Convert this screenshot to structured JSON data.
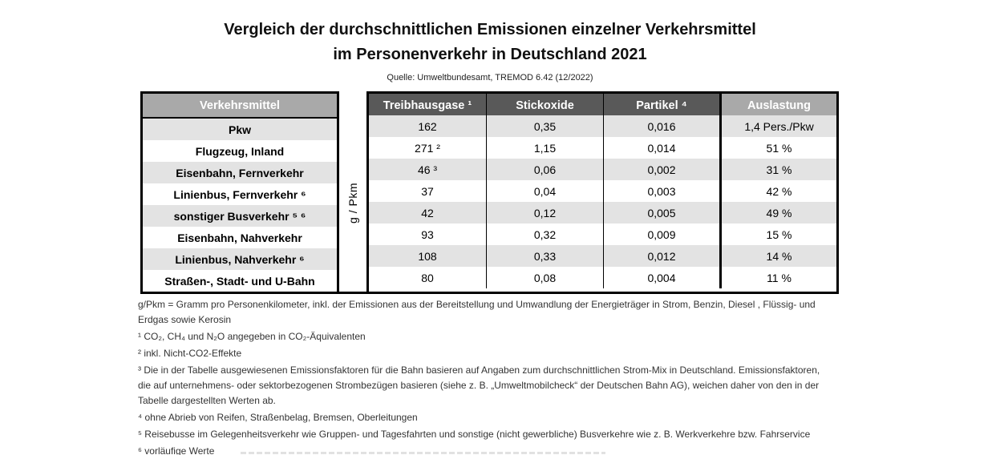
{
  "header": {
    "title_line1": "Vergleich der durchschnittlichen Emissionen einzelner Verkehrsmittel",
    "title_line2": "im Personenverkehr in Deutschland 2021",
    "source": "Quelle: Umweltbundesamt, TREMOD 6.42 (12/2022)"
  },
  "table": {
    "unit_label": "g / Pkm",
    "columns": {
      "col0": "Verkehrsmittel",
      "col1": "Treibhausgase ¹",
      "col2": "Stickoxide",
      "col3": "Partikel ⁴",
      "col4": "Auslastung"
    },
    "rows": [
      {
        "label": "Pkw",
        "ghg": "162",
        "nox": "0,35",
        "pm": "0,016",
        "load": "1,4 Pers./Pkw"
      },
      {
        "label": "Flugzeug, Inland",
        "ghg": "271 ²",
        "nox": "1,15",
        "pm": "0,014",
        "load": "51 %"
      },
      {
        "label": "Eisenbahn, Fernverkehr",
        "ghg": "46 ³",
        "nox": "0,06",
        "pm": "0,002",
        "load": "31 %"
      },
      {
        "label": "Linienbus, Fernverkehr ⁶",
        "ghg": "37",
        "nox": "0,04",
        "pm": "0,003",
        "load": "42 %"
      },
      {
        "label": "sonstiger Busverkehr ⁵ ⁶",
        "ghg": "42",
        "nox": "0,12",
        "pm": "0,005",
        "load": "49 %"
      },
      {
        "label": "Eisenbahn, Nahverkehr",
        "ghg": "93",
        "nox": "0,32",
        "pm": "0,009",
        "load": "15 %"
      },
      {
        "label": "Linienbus, Nahverkehr ⁶",
        "ghg": "108",
        "nox": "0,33",
        "pm": "0,012",
        "load": "14 %"
      },
      {
        "label": "Straßen-, Stadt- und U-Bahn",
        "ghg": "80",
        "nox": "0,08",
        "pm": "0,004",
        "load": "11 %"
      }
    ]
  },
  "footnotes": [
    "g/Pkm = Gramm pro Personenkilometer, inkl. der Emissionen aus der Bereitstellung und Umwandlung der Energieträger in Strom, Benzin, Diesel , Flüssig- und Erdgas sowie Kerosin",
    "¹ CO₂, CH₄ und N₂O angegeben in CO₂-Äquivalenten",
    "² inkl. Nicht-CO2-Effekte",
    "³ Die in der Tabelle ausgewiesenen Emissionsfaktoren für die Bahn basieren auf Angaben zum durchschnittlichen Strom-Mix in Deutschland. Emissionsfaktoren, die auf unternehmens- oder sektorbezogenen Strombezügen basieren (siehe z. B. „Umweltmobilcheck“ der Deutschen Bahn AG), weichen daher von den in der Tabelle dargestellten Werten ab.",
    "⁴ ohne Abrieb von Reifen, Straßenbelag, Bremsen, Oberleitungen",
    "⁵ Reisebusse im Gelegenheitsverkehr wie Gruppen- und Tagesfahrten und sonstige (nicht gewerbliche) Busverkehre wie z. B. Werkverkehre bzw. Fahrservice",
    "⁶ vorläufige Werte"
  ],
  "colors": {
    "header_dark": "#595959",
    "header_medium": "#a9a9a9",
    "row_stripe": "#e3e3e3",
    "border": "#000000",
    "background": "#ffffff"
  },
  "chart_data": {
    "type": "table",
    "title": "Vergleich der durchschnittlichen Emissionen einzelner Verkehrsmittel im Personenverkehr in Deutschland 2021",
    "source": "Quelle: Umweltbundesamt, TREMOD 6.42 (12/2022)",
    "unit": "g / Pkm",
    "columns": [
      "Verkehrsmittel",
      "Treibhausgase",
      "Stickoxide",
      "Partikel",
      "Auslastung"
    ],
    "rows": [
      [
        "Pkw",
        162,
        0.35,
        0.016,
        "1,4 Pers./Pkw"
      ],
      [
        "Flugzeug, Inland",
        271,
        1.15,
        0.014,
        "51 %"
      ],
      [
        "Eisenbahn, Fernverkehr",
        46,
        0.06,
        0.002,
        "31 %"
      ],
      [
        "Linienbus, Fernverkehr",
        37,
        0.04,
        0.003,
        "42 %"
      ],
      [
        "sonstiger Busverkehr",
        42,
        0.12,
        0.005,
        "49 %"
      ],
      [
        "Eisenbahn, Nahverkehr",
        93,
        0.32,
        0.009,
        "15 %"
      ],
      [
        "Linienbus, Nahverkehr",
        108,
        0.33,
        0.012,
        "14 %"
      ],
      [
        "Straßen-, Stadt- und U-Bahn",
        80,
        0.08,
        0.004,
        "11 %"
      ]
    ]
  }
}
